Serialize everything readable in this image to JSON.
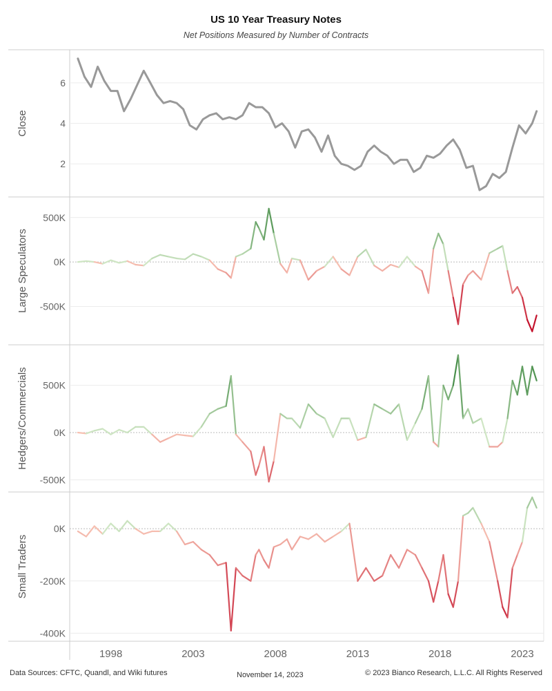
{
  "header": {
    "title": "US 10 Year Treasury Notes",
    "subtitle": "Net Positions Measured by Number of Contracts"
  },
  "footer": {
    "sources": "Data Sources: CFTC, Quandl, and Wiki futures",
    "date": "November 14, 2023",
    "copyright": "© 2023 Bianco Research, L.L.C. All Rights Reserved"
  },
  "colors": {
    "close_line": "#999999",
    "positive_light": "#cfe6c4",
    "positive_dark": "#2e7d32",
    "negative_light": "#f7c2b3",
    "negative_dark": "#c4132d",
    "grid": "#ececec",
    "zero_line": "#bbbbbb"
  },
  "chart_data": {
    "type": "line",
    "x_ticks": [
      1998,
      2003,
      2008,
      2013,
      2018,
      2023
    ],
    "x_range": [
      1995.5,
      2024.3
    ],
    "grid": true,
    "panels": [
      {
        "id": "close",
        "ylabel": "Close",
        "ylim": [
          0.5,
          7.5
        ],
        "ytick_values": [
          2,
          4,
          6
        ],
        "ytick_labels": [
          "2",
          "4",
          "6"
        ],
        "color_mode": "solid",
        "series": {
          "x": [
            1996.0,
            1996.4,
            1996.8,
            1997.2,
            1997.6,
            1998.0,
            1998.4,
            1998.8,
            1999.2,
            1999.6,
            2000.0,
            2000.4,
            2000.8,
            2001.2,
            2001.6,
            2002.0,
            2002.4,
            2002.8,
            2003.2,
            2003.6,
            2004.0,
            2004.4,
            2004.8,
            2005.2,
            2005.6,
            2006.0,
            2006.4,
            2006.8,
            2007.2,
            2007.6,
            2008.0,
            2008.4,
            2008.8,
            2009.2,
            2009.6,
            2010.0,
            2010.4,
            2010.8,
            2011.2,
            2011.6,
            2012.0,
            2012.4,
            2012.8,
            2013.2,
            2013.6,
            2014.0,
            2014.4,
            2014.8,
            2015.2,
            2015.6,
            2016.0,
            2016.4,
            2016.8,
            2017.2,
            2017.6,
            2018.0,
            2018.4,
            2018.8,
            2019.2,
            2019.6,
            2020.0,
            2020.4,
            2020.8,
            2021.2,
            2021.6,
            2022.0,
            2022.4,
            2022.8,
            2023.2,
            2023.6,
            2023.87
          ],
          "y": [
            7.2,
            6.3,
            5.8,
            6.8,
            6.1,
            5.6,
            5.6,
            4.6,
            5.2,
            5.9,
            6.6,
            6.0,
            5.4,
            5.0,
            5.1,
            5.0,
            4.7,
            3.9,
            3.7,
            4.2,
            4.4,
            4.5,
            4.2,
            4.3,
            4.2,
            4.4,
            5.0,
            4.8,
            4.8,
            4.5,
            3.8,
            4.0,
            3.6,
            2.8,
            3.6,
            3.7,
            3.3,
            2.6,
            3.4,
            2.4,
            2.0,
            1.9,
            1.7,
            1.9,
            2.6,
            2.9,
            2.6,
            2.4,
            2.0,
            2.2,
            2.2,
            1.6,
            1.8,
            2.4,
            2.3,
            2.5,
            2.9,
            3.2,
            2.7,
            1.8,
            1.9,
            0.7,
            0.9,
            1.5,
            1.3,
            1.6,
            2.8,
            3.9,
            3.5,
            4.0,
            4.6
          ]
        }
      },
      {
        "id": "large_specs",
        "ylabel": "Large Speculators",
        "ylim": [
          -900000,
          700000
        ],
        "ytick_values": [
          -500000,
          0,
          500000
        ],
        "ytick_labels": [
          "-500K",
          "0K",
          "500K"
        ],
        "scale_max": 650000,
        "color_mode": "diverging",
        "series": {
          "x": [
            1996.0,
            1996.5,
            1997.0,
            1997.5,
            1998.0,
            1998.5,
            1999.0,
            1999.5,
            2000.0,
            2000.5,
            2001.0,
            2001.5,
            2002.0,
            2002.5,
            2003.0,
            2003.5,
            2004.0,
            2004.5,
            2005.0,
            2005.3,
            2005.6,
            2006.0,
            2006.5,
            2006.8,
            2007.0,
            2007.3,
            2007.6,
            2007.9,
            2008.3,
            2008.7,
            2009.0,
            2009.5,
            2010.0,
            2010.5,
            2011.0,
            2011.5,
            2012.0,
            2012.5,
            2013.0,
            2013.5,
            2014.0,
            2014.5,
            2015.0,
            2015.5,
            2016.0,
            2016.5,
            2016.9,
            2017.3,
            2017.6,
            2017.9,
            2018.2,
            2018.5,
            2018.8,
            2019.1,
            2019.4,
            2019.7,
            2020.0,
            2020.5,
            2021.0,
            2021.5,
            2021.8,
            2022.1,
            2022.4,
            2022.7,
            2023.0,
            2023.3,
            2023.6,
            2023.87
          ],
          "y": [
            0,
            10000,
            0,
            -20000,
            20000,
            -10000,
            10000,
            -30000,
            -40000,
            40000,
            80000,
            60000,
            40000,
            30000,
            90000,
            60000,
            20000,
            -80000,
            -120000,
            -180000,
            60000,
            90000,
            150000,
            450000,
            380000,
            250000,
            600000,
            320000,
            -20000,
            -120000,
            40000,
            20000,
            -200000,
            -100000,
            -50000,
            60000,
            -80000,
            -150000,
            60000,
            140000,
            -40000,
            -100000,
            -30000,
            -60000,
            60000,
            -50000,
            -100000,
            -350000,
            150000,
            320000,
            200000,
            -100000,
            -400000,
            -700000,
            -250000,
            -150000,
            -100000,
            -200000,
            100000,
            150000,
            180000,
            -100000,
            -350000,
            -280000,
            -400000,
            -650000,
            -780000,
            -600000
          ]
        }
      },
      {
        "id": "hedgers",
        "ylabel": "Hedgers/Commercials",
        "ylim": [
          -600000,
          900000
        ],
        "ytick_values": [
          -500000,
          0,
          500000
        ],
        "ytick_labels": [
          "-500K",
          "0K",
          "500K"
        ],
        "scale_max": 800000,
        "color_mode": "diverging",
        "series": {
          "x": [
            1996.0,
            1996.5,
            1997.0,
            1997.5,
            1998.0,
            1998.5,
            1999.0,
            1999.5,
            2000.0,
            2000.5,
            2001.0,
            2001.5,
            2002.0,
            2002.5,
            2003.0,
            2003.5,
            2004.0,
            2004.5,
            2005.0,
            2005.3,
            2005.6,
            2006.0,
            2006.5,
            2006.8,
            2007.0,
            2007.3,
            2007.6,
            2007.9,
            2008.3,
            2008.7,
            2009.0,
            2009.5,
            2010.0,
            2010.5,
            2011.0,
            2011.5,
            2012.0,
            2012.5,
            2013.0,
            2013.5,
            2014.0,
            2014.5,
            2015.0,
            2015.5,
            2016.0,
            2016.5,
            2016.9,
            2017.3,
            2017.6,
            2017.9,
            2018.2,
            2018.5,
            2018.8,
            2019.1,
            2019.4,
            2019.7,
            2020.0,
            2020.5,
            2021.0,
            2021.5,
            2021.8,
            2022.1,
            2022.4,
            2022.7,
            2023.0,
            2023.3,
            2023.6,
            2023.87
          ],
          "y": [
            0,
            -10000,
            20000,
            40000,
            -20000,
            30000,
            0,
            60000,
            60000,
            -20000,
            -100000,
            -60000,
            -20000,
            -30000,
            -40000,
            60000,
            200000,
            250000,
            280000,
            600000,
            -20000,
            -100000,
            -200000,
            -450000,
            -350000,
            -150000,
            -520000,
            -300000,
            200000,
            150000,
            150000,
            50000,
            300000,
            200000,
            150000,
            -50000,
            150000,
            150000,
            -80000,
            -50000,
            300000,
            250000,
            200000,
            300000,
            -80000,
            100000,
            250000,
            600000,
            -100000,
            -150000,
            500000,
            350000,
            500000,
            820000,
            150000,
            250000,
            100000,
            150000,
            -150000,
            -150000,
            -100000,
            150000,
            550000,
            400000,
            700000,
            400000,
            700000,
            550000
          ]
        }
      },
      {
        "id": "small_traders",
        "ylabel": "Small Traders",
        "ylim": [
          -420000,
          130000
        ],
        "ytick_values": [
          -400000,
          -200000,
          0
        ],
        "ytick_labels": [
          "-400K",
          "-200K",
          "0K"
        ],
        "scale_max": 380000,
        "color_mode": "diverging",
        "series": {
          "x": [
            1996.0,
            1996.5,
            1997.0,
            1997.5,
            1998.0,
            1998.5,
            1999.0,
            1999.5,
            2000.0,
            2000.5,
            2001.0,
            2001.5,
            2002.0,
            2002.5,
            2003.0,
            2003.5,
            2004.0,
            2004.5,
            2005.0,
            2005.3,
            2005.6,
            2006.0,
            2006.5,
            2006.8,
            2007.0,
            2007.3,
            2007.6,
            2007.9,
            2008.3,
            2008.7,
            2009.0,
            2009.5,
            2010.0,
            2010.5,
            2011.0,
            2011.5,
            2012.0,
            2012.5,
            2013.0,
            2013.5,
            2014.0,
            2014.5,
            2015.0,
            2015.5,
            2016.0,
            2016.5,
            2016.9,
            2017.3,
            2017.6,
            2017.9,
            2018.2,
            2018.5,
            2018.8,
            2019.1,
            2019.4,
            2019.7,
            2020.0,
            2020.5,
            2021.0,
            2021.5,
            2021.8,
            2022.1,
            2022.4,
            2022.7,
            2023.0,
            2023.3,
            2023.6,
            2023.87
          ],
          "y": [
            -10000,
            -30000,
            10000,
            -20000,
            20000,
            -10000,
            30000,
            0,
            -20000,
            -10000,
            -10000,
            20000,
            -10000,
            -60000,
            -50000,
            -80000,
            -100000,
            -140000,
            -130000,
            -390000,
            -150000,
            -180000,
            -200000,
            -100000,
            -80000,
            -120000,
            -150000,
            -70000,
            -60000,
            -40000,
            -80000,
            -30000,
            -40000,
            -20000,
            -50000,
            -30000,
            -10000,
            20000,
            -200000,
            -150000,
            -200000,
            -180000,
            -100000,
            -150000,
            -80000,
            -100000,
            -150000,
            -200000,
            -280000,
            -200000,
            -100000,
            -250000,
            -300000,
            -200000,
            50000,
            60000,
            80000,
            20000,
            -50000,
            -200000,
            -300000,
            -340000,
            -150000,
            -100000,
            -50000,
            80000,
            120000,
            80000
          ]
        }
      }
    ]
  }
}
